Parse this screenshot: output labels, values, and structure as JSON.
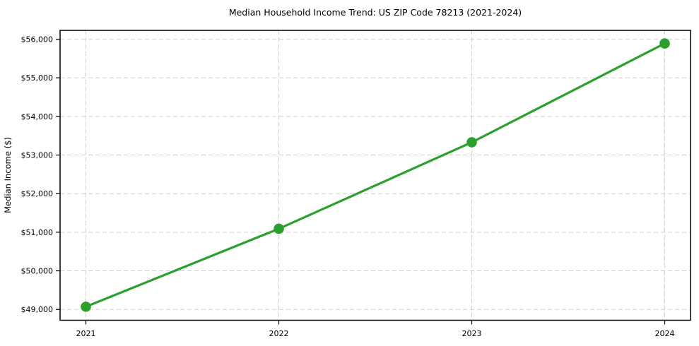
{
  "chart_data": {
    "type": "line",
    "title": "Median Household Income Trend: US ZIP Code 78213 (2021-2024)",
    "xlabel": "",
    "ylabel": "Median Income ($)",
    "x": [
      2021,
      2022,
      2023,
      2024
    ],
    "x_tick_labels": [
      "2021",
      "2022",
      "2023",
      "2024"
    ],
    "series": [
      {
        "name": "Median Household Income",
        "values": [
          49070,
          51090,
          53330,
          55890
        ]
      }
    ],
    "y_ticks": [
      49000,
      50000,
      51000,
      52000,
      53000,
      54000,
      55000,
      56000
    ],
    "y_tick_labels": [
      "$49,000",
      "$50,000",
      "$51,000",
      "$52,000",
      "$53,000",
      "$54,000",
      "$55,000",
      "$56,000"
    ],
    "ylim": [
      48720,
      56230
    ],
    "grid": true,
    "grid_style": "dashed",
    "legend_position": "none",
    "colors": {
      "line": "#2ca02c",
      "marker": "#2ca02c",
      "grid": "#cfcfcf",
      "axis": "#000000",
      "background": "#ffffff"
    },
    "marker": "circle",
    "marker_radius": 7.3,
    "line_width": 3.2
  }
}
